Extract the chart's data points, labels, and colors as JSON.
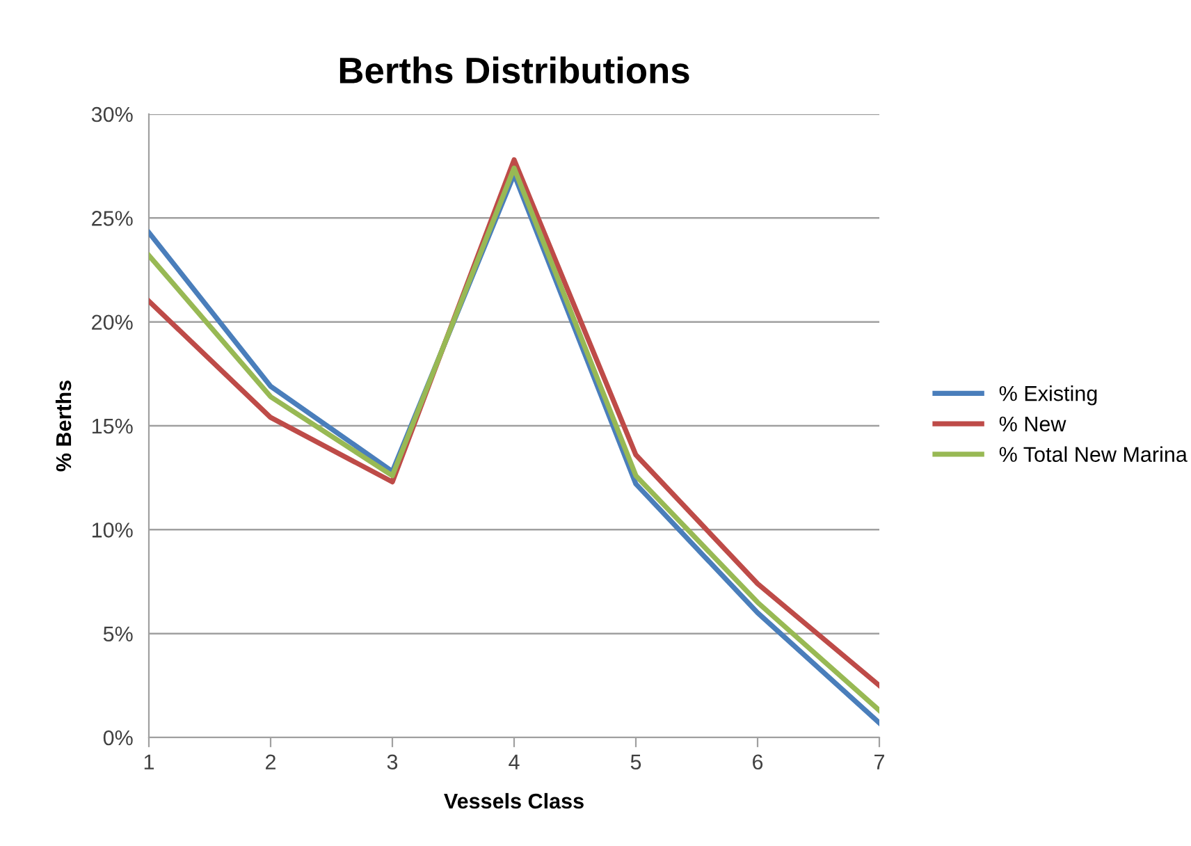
{
  "chart_data": {
    "type": "line",
    "title": "Berths Distributions",
    "xlabel": "Vessels Class",
    "ylabel": "% Berths",
    "x": [
      1,
      2,
      3,
      4,
      5,
      6,
      7
    ],
    "xlim": [
      1,
      7
    ],
    "xticks": [
      1,
      2,
      3,
      4,
      5,
      6,
      7
    ],
    "ylim": [
      0,
      30
    ],
    "yticks": [
      {
        "value": 0,
        "label": "0%"
      },
      {
        "value": 5,
        "label": "5%"
      },
      {
        "value": 10,
        "label": "10%"
      },
      {
        "value": 15,
        "label": "15%"
      },
      {
        "value": 20,
        "label": "20%"
      },
      {
        "value": 25,
        "label": "25%"
      },
      {
        "value": 30,
        "label": "30%"
      }
    ],
    "grid": "y",
    "legend": "right",
    "marker": "none",
    "line_style": "solid",
    "series": [
      {
        "name": "% Existing",
        "color": "#4a7ebb",
        "values": [
          24.3,
          16.9,
          12.8,
          27.1,
          12.2,
          6.0,
          0.7
        ]
      },
      {
        "name": "% New",
        "color": "#be4b48",
        "values": [
          21.0,
          15.4,
          12.3,
          27.8,
          13.6,
          7.4,
          2.5
        ]
      },
      {
        "name": "% Total New Marina",
        "color": "#98b954",
        "values": [
          23.2,
          16.4,
          12.6,
          27.4,
          12.6,
          6.5,
          1.3
        ]
      }
    ]
  }
}
